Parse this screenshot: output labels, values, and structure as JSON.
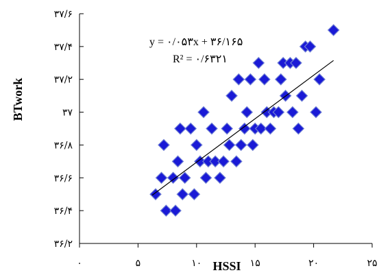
{
  "chart_data": {
    "type": "scatter",
    "xlabel": "HSSI",
    "ylabel": "BTwork",
    "xlim": [
      0,
      25
    ],
    "ylim": [
      36.2,
      37.6
    ],
    "x_ticks": [
      0,
      5,
      10,
      15,
      20,
      25
    ],
    "x_tick_labels": [
      "۰",
      "۵",
      "۱۰",
      "۱۵",
      "۲۰",
      "۲۵"
    ],
    "y_ticks": [
      36.2,
      36.4,
      36.6,
      36.8,
      37.0,
      37.2,
      37.4,
      37.6
    ],
    "y_tick_labels": [
      "۳۶/۲",
      "۳۶/۴",
      "۳۶/۶",
      "۳۶/۸",
      "۳۷",
      "۳۷/۲",
      "۳۷/۴",
      "۳۷/۶"
    ],
    "marker_color": "#1a1ad6",
    "marker_edge_color": "#6f7fd4",
    "marker": "diamond",
    "series": [
      {
        "points": [
          [
            6.5,
            36.5
          ],
          [
            7.0,
            36.6
          ],
          [
            7.2,
            36.8
          ],
          [
            7.4,
            36.4
          ],
          [
            8.0,
            36.6
          ],
          [
            8.2,
            36.4
          ],
          [
            8.4,
            36.7
          ],
          [
            8.6,
            36.9
          ],
          [
            8.8,
            36.5
          ],
          [
            9.0,
            36.6
          ],
          [
            9.5,
            36.9
          ],
          [
            9.8,
            36.5
          ],
          [
            10.0,
            36.8
          ],
          [
            10.3,
            36.7
          ],
          [
            10.6,
            37.0
          ],
          [
            10.8,
            36.6
          ],
          [
            11.0,
            36.7
          ],
          [
            11.3,
            36.9
          ],
          [
            11.6,
            36.7
          ],
          [
            12.0,
            36.6
          ],
          [
            12.3,
            36.7
          ],
          [
            12.6,
            36.9
          ],
          [
            12.8,
            36.8
          ],
          [
            13.0,
            37.1
          ],
          [
            13.4,
            36.7
          ],
          [
            13.6,
            37.2
          ],
          [
            13.8,
            36.8
          ],
          [
            14.1,
            36.9
          ],
          [
            14.3,
            37.0
          ],
          [
            14.6,
            37.2
          ],
          [
            14.8,
            36.8
          ],
          [
            15.0,
            36.9
          ],
          [
            15.3,
            37.3
          ],
          [
            15.5,
            36.9
          ],
          [
            15.8,
            37.2
          ],
          [
            16.0,
            37.0
          ],
          [
            16.3,
            36.9
          ],
          [
            16.6,
            37.0
          ],
          [
            17.0,
            37.0
          ],
          [
            17.2,
            37.2
          ],
          [
            17.4,
            37.3
          ],
          [
            17.6,
            37.1
          ],
          [
            18.0,
            37.3
          ],
          [
            18.2,
            37.0
          ],
          [
            18.5,
            37.3
          ],
          [
            18.7,
            36.9
          ],
          [
            19.0,
            37.1
          ],
          [
            19.3,
            37.4
          ],
          [
            19.7,
            37.4
          ],
          [
            20.2,
            37.0
          ],
          [
            20.5,
            37.2
          ],
          [
            21.7,
            37.5
          ]
        ]
      }
    ],
    "trendline": {
      "slope": 0.053,
      "intercept": 36.165,
      "x_range": [
        6.2,
        21.7
      ],
      "equation_label": "y = ۰/۰۵۳x + ۳۶/۱۶۵",
      "r2_label": "R² = ۰/۶۳۲۱"
    }
  }
}
